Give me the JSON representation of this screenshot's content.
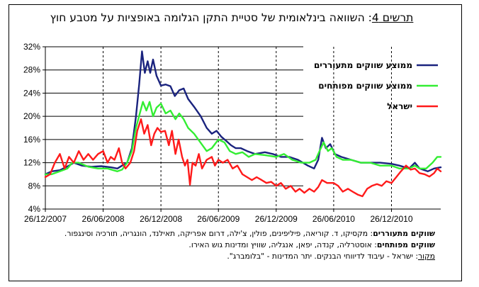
{
  "title": {
    "label": "תרשים 4",
    "text": ": השוואה בינלאומית של סטיית התקן הגלומה באופציות על מטבע חוץ"
  },
  "notes": {
    "emerging_label": "שווקים מתעוררים",
    "emerging_text": ": מקסיקו, ד. קוריאה, פיליפינים, פולין, צ'ילה, דרום אפריקה, תאילנד, הונגריה, תורכיה וסינגפור.",
    "developed_label": "שווקים מפותחים",
    "developed_text": ": אוסטרליה, קנדה, יפאן, אנגליה, שוויץ ומדינות גוש האירו.",
    "source_label": "מקור",
    "source_text": ": ישראל - עיבוד לדיווחי הבנקים. יתר המדינות - \"בלומברג\"."
  },
  "chart_data": {
    "type": "line",
    "title": "תרשים 4: השוואה בינלאומית של סטיית התקן הגלומה באופציות על מטבע חוץ",
    "xlabel": "",
    "ylabel": "",
    "x_ticks": [
      "26/12/2007",
      "26/06/2008",
      "26/12/2008",
      "26/06/2009",
      "26/12/2009",
      "26/06/2010",
      "26/12/2010"
    ],
    "y_ticks": [
      "4%",
      "8%",
      "12%",
      "16%",
      "20%",
      "24%",
      "28%",
      "32%"
    ],
    "ylim": [
      4,
      32
    ],
    "x_range": [
      "2007-12-26",
      "2011-05-31"
    ],
    "grid": {
      "horizontal": true,
      "vertical_dashed": true
    },
    "legend_position": "top-right",
    "series": [
      {
        "name": "ממוצע שווקים מתעוררים",
        "color": "#1a237e",
        "points": [
          [
            "2007-12-26",
            10.0
          ],
          [
            "2008-01-15",
            10.5
          ],
          [
            "2008-02-10",
            10.7
          ],
          [
            "2008-03-10",
            11.5
          ],
          [
            "2008-03-25",
            12.0
          ],
          [
            "2008-04-20",
            11.5
          ],
          [
            "2008-05-20",
            11.3
          ],
          [
            "2008-06-20",
            11.4
          ],
          [
            "2008-07-20",
            11.2
          ],
          [
            "2008-08-10",
            11.0
          ],
          [
            "2008-08-25",
            11.5
          ],
          [
            "2008-09-10",
            12.0
          ],
          [
            "2008-09-25",
            14.5
          ],
          [
            "2008-10-08",
            20.0
          ],
          [
            "2008-10-18",
            25.5
          ],
          [
            "2008-10-27",
            31.2
          ],
          [
            "2008-11-05",
            27.5
          ],
          [
            "2008-11-14",
            29.5
          ],
          [
            "2008-11-22",
            27.5
          ],
          [
            "2008-12-01",
            29.8
          ],
          [
            "2008-12-12",
            27.0
          ],
          [
            "2008-12-26",
            25.3
          ],
          [
            "2009-01-10",
            25.5
          ],
          [
            "2009-01-25",
            25.2
          ],
          [
            "2009-02-08",
            23.5
          ],
          [
            "2009-02-22",
            24.5
          ],
          [
            "2009-03-08",
            24.8
          ],
          [
            "2009-03-22",
            23.0
          ],
          [
            "2009-04-12",
            21.5
          ],
          [
            "2009-05-01",
            20.0
          ],
          [
            "2009-05-20",
            18.0
          ],
          [
            "2009-06-05",
            17.0
          ],
          [
            "2009-06-20",
            17.5
          ],
          [
            "2009-07-05",
            16.5
          ],
          [
            "2009-07-20",
            15.8
          ],
          [
            "2009-08-05",
            15.0
          ],
          [
            "2009-08-20",
            14.5
          ],
          [
            "2009-09-05",
            14.5
          ],
          [
            "2009-09-25",
            14.0
          ],
          [
            "2009-10-20",
            13.5
          ],
          [
            "2009-11-20",
            13.8
          ],
          [
            "2009-12-15",
            13.5
          ],
          [
            "2010-01-10",
            13.0
          ],
          [
            "2010-02-05",
            13.0
          ],
          [
            "2010-03-05",
            12.5
          ],
          [
            "2010-04-05",
            11.5
          ],
          [
            "2010-04-25",
            11.0
          ],
          [
            "2010-05-08",
            12.5
          ],
          [
            "2010-05-20",
            16.3
          ],
          [
            "2010-06-01",
            14.5
          ],
          [
            "2010-06-15",
            15.2
          ],
          [
            "2010-06-30",
            13.5
          ],
          [
            "2010-07-20",
            13.0
          ],
          [
            "2010-08-20",
            12.5
          ],
          [
            "2010-09-20",
            12.0
          ],
          [
            "2010-10-20",
            12.0
          ],
          [
            "2010-11-20",
            12.0
          ],
          [
            "2010-12-26",
            11.8
          ],
          [
            "2011-01-20",
            11.5
          ],
          [
            "2011-02-20",
            11.0
          ],
          [
            "2011-03-10",
            12.0
          ],
          [
            "2011-03-25",
            11.0
          ],
          [
            "2011-04-20",
            10.5
          ],
          [
            "2011-05-10",
            11.0
          ],
          [
            "2011-05-31",
            11.2
          ]
        ]
      },
      {
        "name": "ממוצע שווקים מפותחים",
        "color": "#33ee33",
        "points": [
          [
            "2007-12-26",
            10.0
          ],
          [
            "2008-01-15",
            10.0
          ],
          [
            "2008-02-10",
            10.5
          ],
          [
            "2008-03-05",
            11.0
          ],
          [
            "2008-03-20",
            12.0
          ],
          [
            "2008-04-10",
            12.0
          ],
          [
            "2008-05-10",
            11.3
          ],
          [
            "2008-06-10",
            11.0
          ],
          [
            "2008-07-10",
            11.0
          ],
          [
            "2008-08-10",
            10.5
          ],
          [
            "2008-08-25",
            10.8
          ],
          [
            "2008-09-10",
            12.0
          ],
          [
            "2008-09-25",
            14.0
          ],
          [
            "2008-10-08",
            18.0
          ],
          [
            "2008-10-20",
            20.5
          ],
          [
            "2008-10-30",
            22.5
          ],
          [
            "2008-11-10",
            21.0
          ],
          [
            "2008-11-20",
            22.5
          ],
          [
            "2008-12-01",
            20.0
          ],
          [
            "2008-12-12",
            21.5
          ],
          [
            "2008-12-26",
            22.2
          ],
          [
            "2009-01-10",
            20.5
          ],
          [
            "2009-01-25",
            21.0
          ],
          [
            "2009-02-10",
            19.5
          ],
          [
            "2009-02-22",
            20.5
          ],
          [
            "2009-03-08",
            19.5
          ],
          [
            "2009-03-22",
            18.0
          ],
          [
            "2009-04-10",
            17.0
          ],
          [
            "2009-04-30",
            15.5
          ],
          [
            "2009-05-20",
            14.0
          ],
          [
            "2009-06-05",
            14.5
          ],
          [
            "2009-06-26",
            16.0
          ],
          [
            "2009-07-15",
            15.5
          ],
          [
            "2009-08-01",
            14.0
          ],
          [
            "2009-08-20",
            13.5
          ],
          [
            "2009-09-10",
            13.8
          ],
          [
            "2009-09-30",
            13.0
          ],
          [
            "2009-10-20",
            13.5
          ],
          [
            "2009-11-20",
            13.3
          ],
          [
            "2009-12-26",
            13.0
          ],
          [
            "2010-01-20",
            13.5
          ],
          [
            "2010-02-15",
            12.5
          ],
          [
            "2010-03-15",
            12.0
          ],
          [
            "2010-04-10",
            12.0
          ],
          [
            "2010-04-30",
            12.5
          ],
          [
            "2010-05-12",
            14.0
          ],
          [
            "2010-05-25",
            15.5
          ],
          [
            "2010-06-08",
            14.0
          ],
          [
            "2010-06-20",
            14.5
          ],
          [
            "2010-07-05",
            13.0
          ],
          [
            "2010-07-25",
            12.5
          ],
          [
            "2010-08-20",
            12.5
          ],
          [
            "2010-09-20",
            12.0
          ],
          [
            "2010-10-20",
            12.0
          ],
          [
            "2010-11-20",
            11.5
          ],
          [
            "2010-12-26",
            11.5
          ],
          [
            "2011-01-20",
            11.0
          ],
          [
            "2011-02-20",
            11.0
          ],
          [
            "2011-03-10",
            11.5
          ],
          [
            "2011-03-25",
            11.0
          ],
          [
            "2011-04-15",
            11.0
          ],
          [
            "2011-05-05",
            12.0
          ],
          [
            "2011-05-20",
            13.0
          ],
          [
            "2011-05-31",
            13.0
          ]
        ]
      },
      {
        "name": "ישראל",
        "color": "#ff1a1a",
        "points": [
          [
            "2007-12-26",
            9.5
          ],
          [
            "2008-01-10",
            10.0
          ],
          [
            "2008-01-25",
            12.0
          ],
          [
            "2008-02-10",
            13.5
          ],
          [
            "2008-02-25",
            11.0
          ],
          [
            "2008-03-10",
            13.0
          ],
          [
            "2008-03-25",
            12.0
          ],
          [
            "2008-04-10",
            14.0
          ],
          [
            "2008-04-25",
            12.5
          ],
          [
            "2008-05-10",
            13.5
          ],
          [
            "2008-05-25",
            12.5
          ],
          [
            "2008-06-10",
            13.5
          ],
          [
            "2008-06-26",
            14.0
          ],
          [
            "2008-07-10",
            12.0
          ],
          [
            "2008-07-20",
            13.0
          ],
          [
            "2008-08-01",
            12.5
          ],
          [
            "2008-08-15",
            14.5
          ],
          [
            "2008-08-25",
            12.0
          ],
          [
            "2008-09-05",
            11.0
          ],
          [
            "2008-09-20",
            12.0
          ],
          [
            "2008-10-02",
            14.0
          ],
          [
            "2008-10-12",
            17.5
          ],
          [
            "2008-10-24",
            19.5
          ],
          [
            "2008-11-03",
            17.0
          ],
          [
            "2008-11-14",
            18.5
          ],
          [
            "2008-11-25",
            15.0
          ],
          [
            "2008-12-05",
            17.0
          ],
          [
            "2008-12-15",
            18.0
          ],
          [
            "2008-12-26",
            17.3
          ],
          [
            "2009-01-08",
            17.5
          ],
          [
            "2009-01-20",
            15.0
          ],
          [
            "2009-01-30",
            17.5
          ],
          [
            "2009-02-10",
            13.5
          ],
          [
            "2009-02-20",
            16.0
          ],
          [
            "2009-03-03",
            13.0
          ],
          [
            "2009-03-12",
            11.5
          ],
          [
            "2009-03-20",
            12.5
          ],
          [
            "2009-03-28",
            8.2
          ],
          [
            "2009-04-05",
            12.0
          ],
          [
            "2009-04-15",
            11.5
          ],
          [
            "2009-04-25",
            13.5
          ],
          [
            "2009-05-05",
            11.0
          ],
          [
            "2009-05-20",
            12.5
          ],
          [
            "2009-06-05",
            13.0
          ],
          [
            "2009-06-15",
            11.5
          ],
          [
            "2009-06-26",
            12.5
          ],
          [
            "2009-07-10",
            12.0
          ],
          [
            "2009-07-25",
            12.5
          ],
          [
            "2009-08-10",
            11.0
          ],
          [
            "2009-08-25",
            11.5
          ],
          [
            "2009-09-10",
            10.0
          ],
          [
            "2009-09-25",
            9.5
          ],
          [
            "2009-10-10",
            9.0
          ],
          [
            "2009-10-25",
            9.5
          ],
          [
            "2009-11-10",
            9.0
          ],
          [
            "2009-11-25",
            8.5
          ],
          [
            "2009-12-10",
            8.7
          ],
          [
            "2009-12-26",
            8.0
          ],
          [
            "2010-01-10",
            8.5
          ],
          [
            "2010-01-25",
            7.5
          ],
          [
            "2010-02-10",
            8.0
          ],
          [
            "2010-02-25",
            7.0
          ],
          [
            "2010-03-10",
            7.5
          ],
          [
            "2010-03-25",
            6.8
          ],
          [
            "2010-04-10",
            7.5
          ],
          [
            "2010-04-25",
            7.0
          ],
          [
            "2010-05-08",
            7.8
          ],
          [
            "2010-05-20",
            9.0
          ],
          [
            "2010-06-05",
            8.5
          ],
          [
            "2010-06-26",
            8.5
          ],
          [
            "2010-07-10",
            8.0
          ],
          [
            "2010-07-25",
            7.0
          ],
          [
            "2010-08-10",
            7.5
          ],
          [
            "2010-08-25",
            7.0
          ],
          [
            "2010-09-10",
            6.5
          ],
          [
            "2010-09-25",
            6.2
          ],
          [
            "2010-10-10",
            7.5
          ],
          [
            "2010-10-25",
            8.0
          ],
          [
            "2010-11-10",
            8.3
          ],
          [
            "2010-11-25",
            8.0
          ],
          [
            "2010-12-10",
            8.8
          ],
          [
            "2010-12-26",
            8.5
          ],
          [
            "2011-01-10",
            9.5
          ],
          [
            "2011-01-25",
            10.5
          ],
          [
            "2011-02-10",
            11.5
          ],
          [
            "2011-02-25",
            10.8
          ],
          [
            "2011-03-10",
            11.0
          ],
          [
            "2011-03-25",
            10.2
          ],
          [
            "2011-04-10",
            10.0
          ],
          [
            "2011-04-25",
            9.6
          ],
          [
            "2011-05-10",
            10.2
          ],
          [
            "2011-05-20",
            11.0
          ],
          [
            "2011-05-31",
            10.5
          ]
        ]
      }
    ]
  }
}
